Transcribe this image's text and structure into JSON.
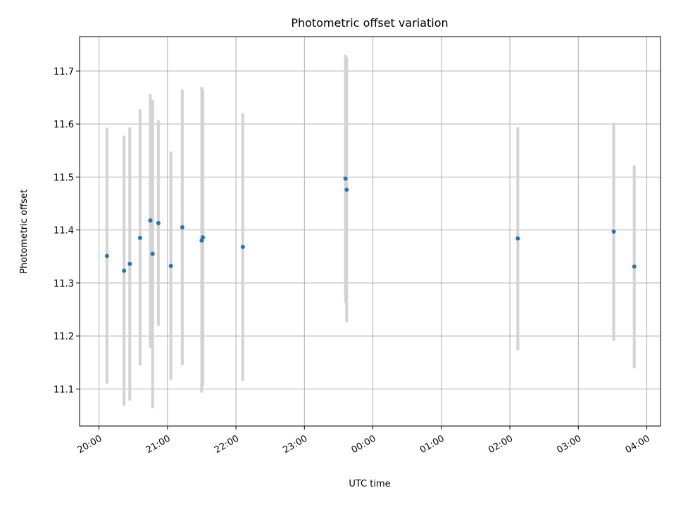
{
  "chart_data": {
    "type": "scatter",
    "title": "Photometric offset variation",
    "xlabel": "UTC time",
    "ylabel": "Photometric offset",
    "x_unit": "UTC clock time (hours after 20:00 the first night)",
    "xlim": [
      "19:43",
      "04:12"
    ],
    "ylim": [
      11.03,
      11.765
    ],
    "x_ticks": [
      "20:00",
      "21:00",
      "22:00",
      "23:00",
      "00:00",
      "01:00",
      "02:00",
      "03:00",
      "04:00"
    ],
    "y_ticks": [
      "11.1",
      "11.2",
      "11.3",
      "11.4",
      "11.5",
      "11.6",
      "11.7"
    ],
    "grid": true,
    "colors": {
      "point": "#1f77b4",
      "errorbar": "#d3d3d3",
      "grid": "#b0b0b0"
    },
    "series": [
      {
        "points": [
          {
            "x": "20:07",
            "y": 11.351,
            "ylow": 11.11,
            "yhigh": 11.593
          },
          {
            "x": "20:22",
            "y": 11.323,
            "ylow": 11.068,
            "yhigh": 11.578
          },
          {
            "x": "20:27",
            "y": 11.336,
            "ylow": 11.078,
            "yhigh": 11.594
          },
          {
            "x": "20:36",
            "y": 11.385,
            "ylow": 11.144,
            "yhigh": 11.628
          },
          {
            "x": "20:45",
            "y": 11.418,
            "ylow": 11.177,
            "yhigh": 11.657
          },
          {
            "x": "20:47",
            "y": 11.355,
            "ylow": 11.064,
            "yhigh": 11.646
          },
          {
            "x": "20:52",
            "y": 11.413,
            "ylow": 11.219,
            "yhigh": 11.607
          },
          {
            "x": "21:03",
            "y": 11.332,
            "ylow": 11.117,
            "yhigh": 11.548
          },
          {
            "x": "21:13",
            "y": 11.405,
            "ylow": 11.145,
            "yhigh": 11.665
          },
          {
            "x": "21:30",
            "y": 11.38,
            "ylow": 11.093,
            "yhigh": 11.67
          },
          {
            "x": "21:31",
            "y": 11.386,
            "ylow": 11.106,
            "yhigh": 11.665
          },
          {
            "x": "22:06",
            "y": 11.368,
            "ylow": 11.115,
            "yhigh": 11.62
          },
          {
            "x": "23:36",
            "y": 11.497,
            "ylow": 11.263,
            "yhigh": 11.731
          },
          {
            "x": "23:37",
            "y": 11.476,
            "ylow": 11.226,
            "yhigh": 11.726
          },
          {
            "x": "02:07",
            "y": 11.384,
            "ylow": 11.173,
            "yhigh": 11.594
          },
          {
            "x": "03:31",
            "y": 11.397,
            "ylow": 11.191,
            "yhigh": 11.603
          },
          {
            "x": "03:49",
            "y": 11.331,
            "ylow": 11.139,
            "yhigh": 11.522
          }
        ]
      }
    ]
  }
}
